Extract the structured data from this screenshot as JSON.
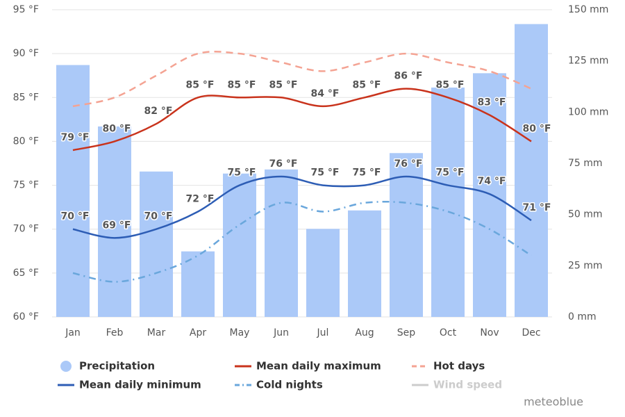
{
  "chart_data": {
    "type": "bar",
    "categories": [
      "Jan",
      "Feb",
      "Mar",
      "Apr",
      "May",
      "Jun",
      "Jul",
      "Aug",
      "Sep",
      "Oct",
      "Nov",
      "Dec"
    ],
    "ylim": [
      60,
      95
    ],
    "yticks": [
      {
        "value": 60,
        "label": "60 °F"
      },
      {
        "value": 65,
        "label": "65 °F"
      },
      {
        "value": 70,
        "label": "70 °F"
      },
      {
        "value": 75,
        "label": "75 °F"
      },
      {
        "value": 80,
        "label": "80 °F"
      },
      {
        "value": 85,
        "label": "85 °F"
      },
      {
        "value": 90,
        "label": "90 °F"
      },
      {
        "value": 95,
        "label": "95 °F"
      }
    ],
    "y2lim": [
      0,
      150
    ],
    "y2ticks": [
      {
        "value": 0,
        "label": "0 mm"
      },
      {
        "value": 25,
        "label": "25 mm"
      },
      {
        "value": 50,
        "label": "50 mm"
      },
      {
        "value": 75,
        "label": "75 mm"
      },
      {
        "value": 100,
        "label": "100 mm"
      },
      {
        "value": 125,
        "label": "125 mm"
      },
      {
        "value": 150,
        "label": "150 mm"
      }
    ],
    "grid": true,
    "series": [
      {
        "name": "Precipitation",
        "type": "bar",
        "axis": "y2",
        "color": "#abc9f8",
        "values": [
          123,
          93,
          71,
          32,
          70,
          72,
          43,
          52,
          80,
          112,
          119,
          143
        ]
      },
      {
        "name": "Mean daily maximum",
        "type": "line",
        "style": "solid",
        "color": "#c9331c",
        "label_color": "#9e4317",
        "values": [
          79,
          80,
          82,
          85,
          85,
          85,
          84,
          85,
          86,
          85,
          83,
          80
        ],
        "value_labels": [
          "79 °F",
          "80 °F",
          "82 °F",
          "85 °F",
          "85 °F",
          "85 °F",
          "84 °F",
          "85 °F",
          "86 °F",
          "85 °F",
          "83 °F",
          "80 °F"
        ]
      },
      {
        "name": "Hot days",
        "type": "line",
        "style": "dash",
        "color": "#f4a393",
        "values": [
          84,
          85,
          87.5,
          90,
          90,
          89,
          88,
          89,
          90,
          89,
          88,
          86
        ]
      },
      {
        "name": "Mean daily minimum",
        "type": "line",
        "style": "solid",
        "color": "#2d5db5",
        "label_color": "#2d5db5",
        "values": [
          70,
          69,
          70,
          72,
          75,
          76,
          75,
          75,
          76,
          75,
          74,
          71
        ],
        "value_labels": [
          "70 °F",
          "69 °F",
          "70 °F",
          "72 °F",
          "75 °F",
          "76 °F",
          "75 °F",
          "75 °F",
          "76 °F",
          "75 °F",
          "74 °F",
          "71 °F"
        ]
      },
      {
        "name": "Cold nights",
        "type": "line",
        "style": "dashdot",
        "color": "#6aa7dc",
        "values": [
          65,
          64,
          65,
          67,
          70.5,
          73,
          72,
          73,
          73,
          72,
          70,
          67
        ]
      },
      {
        "name": "Wind speed",
        "type": "line",
        "style": "solid",
        "color": "#cccccc",
        "hidden": true,
        "values": [
          null,
          null,
          null,
          null,
          null,
          null,
          null,
          null,
          null,
          null,
          null,
          null
        ]
      }
    ],
    "credit": "meteoblue"
  }
}
